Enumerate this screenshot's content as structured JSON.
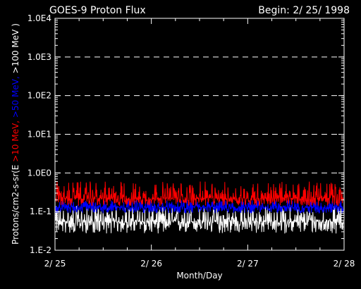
{
  "chart_data": {
    "type": "line",
    "title": "GOES-9 Proton Flux",
    "begin_label": "Begin: 2/ 25/ 1998",
    "xlabel": "Month/Day",
    "ylabel_parts": [
      {
        "text": "Protons/cm2-s-sr(E ",
        "color": "#ffffff"
      },
      {
        "text": ">10 MeV, ",
        "color": "#ff0000"
      },
      {
        "text": ">50 MeV, ",
        "color": "#0000ff"
      },
      {
        "text": ">100 MeV )",
        "color": "#ffffff"
      }
    ],
    "y_scale": "log",
    "ylim": [
      0.01,
      10000
    ],
    "y_ticks": [
      {
        "value": 10000,
        "label": "1.0E4"
      },
      {
        "value": 1000,
        "label": "1.0E3"
      },
      {
        "value": 100,
        "label": "1.0E2"
      },
      {
        "value": 10,
        "label": "1.0E1"
      },
      {
        "value": 1,
        "label": "1.0E0"
      },
      {
        "value": 0.1,
        "label": "1.E-1"
      },
      {
        "value": 0.01,
        "label": "1.E-2"
      }
    ],
    "gridlines_at": [
      1000,
      100,
      10,
      1
    ],
    "grid_style": "dashed",
    "xlim": [
      0,
      3
    ],
    "x_ticks": [
      {
        "value": 0,
        "label": "2/ 25"
      },
      {
        "value": 1,
        "label": "2/ 26"
      },
      {
        "value": 2,
        "label": "2/ 27"
      },
      {
        "value": 3,
        "label": "2/ 28"
      }
    ],
    "series": [
      {
        "label": ">10 MeV",
        "color": "#ff0000",
        "level": 0.22,
        "spread_low": 0.14,
        "spread_high": 0.6
      },
      {
        "label": ">50 MeV",
        "color": "#0000ff",
        "level": 0.13,
        "spread_low": 0.09,
        "spread_high": 0.2
      },
      {
        "label": ">100 MeV",
        "color": "#ffffff",
        "level": 0.055,
        "spread_low": 0.027,
        "spread_high": 0.14
      }
    ]
  }
}
